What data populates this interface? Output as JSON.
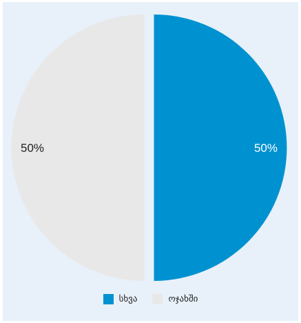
{
  "chart_data": {
    "type": "pie",
    "slices": [
      {
        "label": "სხვა",
        "value": 50,
        "display": "50%",
        "color": "#0092d0",
        "label_color": "#ffffff"
      },
      {
        "label": "ოჯახში",
        "value": 50,
        "display": "50%",
        "color": "#e8e8e8",
        "label_color": "#222222"
      }
    ],
    "legend_position": "bottom"
  }
}
